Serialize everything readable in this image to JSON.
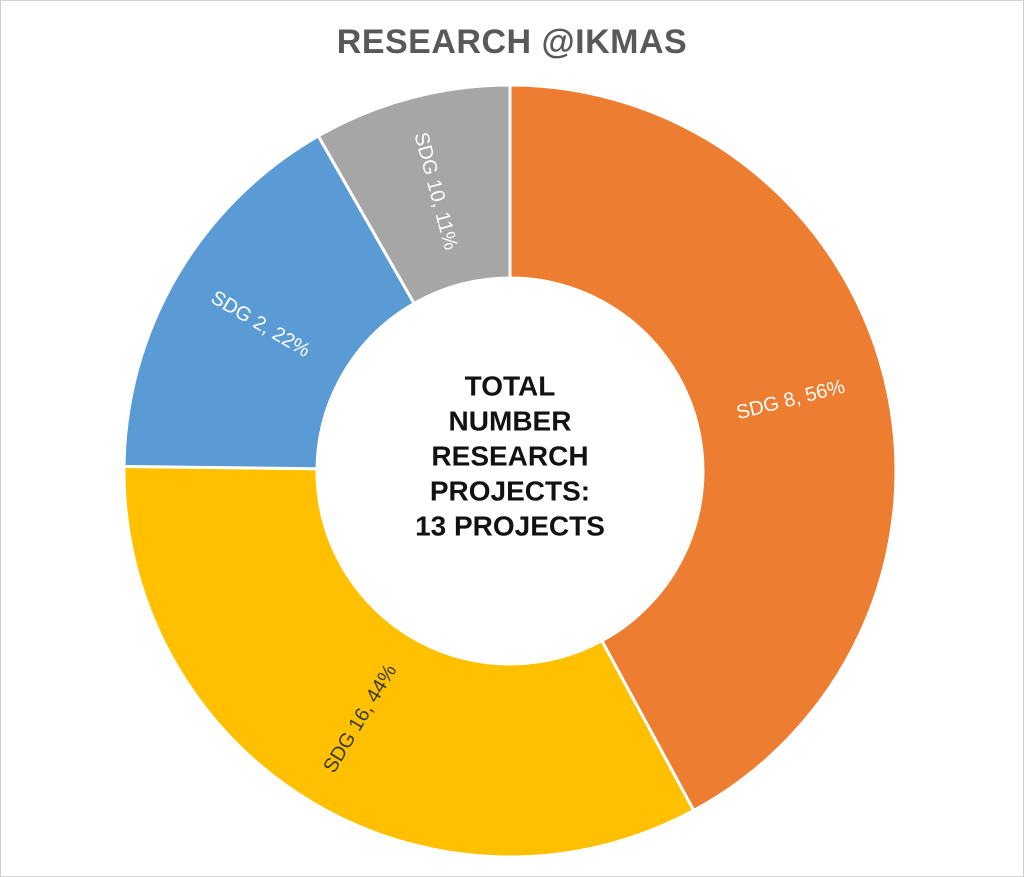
{
  "title": "RESEARCH @IKMAS",
  "title_color": "#595959",
  "chart_data": {
    "type": "pie",
    "subtype": "donut",
    "title": "RESEARCH @IKMAS",
    "legend": "none",
    "hole_ratio": 0.5,
    "slices": [
      {
        "label": "SDG 8",
        "pct": 56,
        "color": "#ED7D31",
        "text_color": "#FFFFFF"
      },
      {
        "label": "SDG 16",
        "pct": 44,
        "color": "#FFC000",
        "text_color": "#3B3B3B"
      },
      {
        "label": "SDG 2",
        "pct": 22,
        "color": "#5B9BD5",
        "text_color": "#FFFFFF"
      },
      {
        "label": "SDG 10",
        "pct": 11,
        "color": "#A6A6A6",
        "text_color": "#FFFFFF"
      }
    ],
    "label_format": "{label}, {pct}%",
    "center_label_lines": [
      "TOTAL",
      "NUMBER",
      "RESEARCH",
      "PROJECTS:",
      "13 PROJECTS"
    ],
    "center_label_color": "#121212",
    "separator_color": "#FFFFFF"
  }
}
